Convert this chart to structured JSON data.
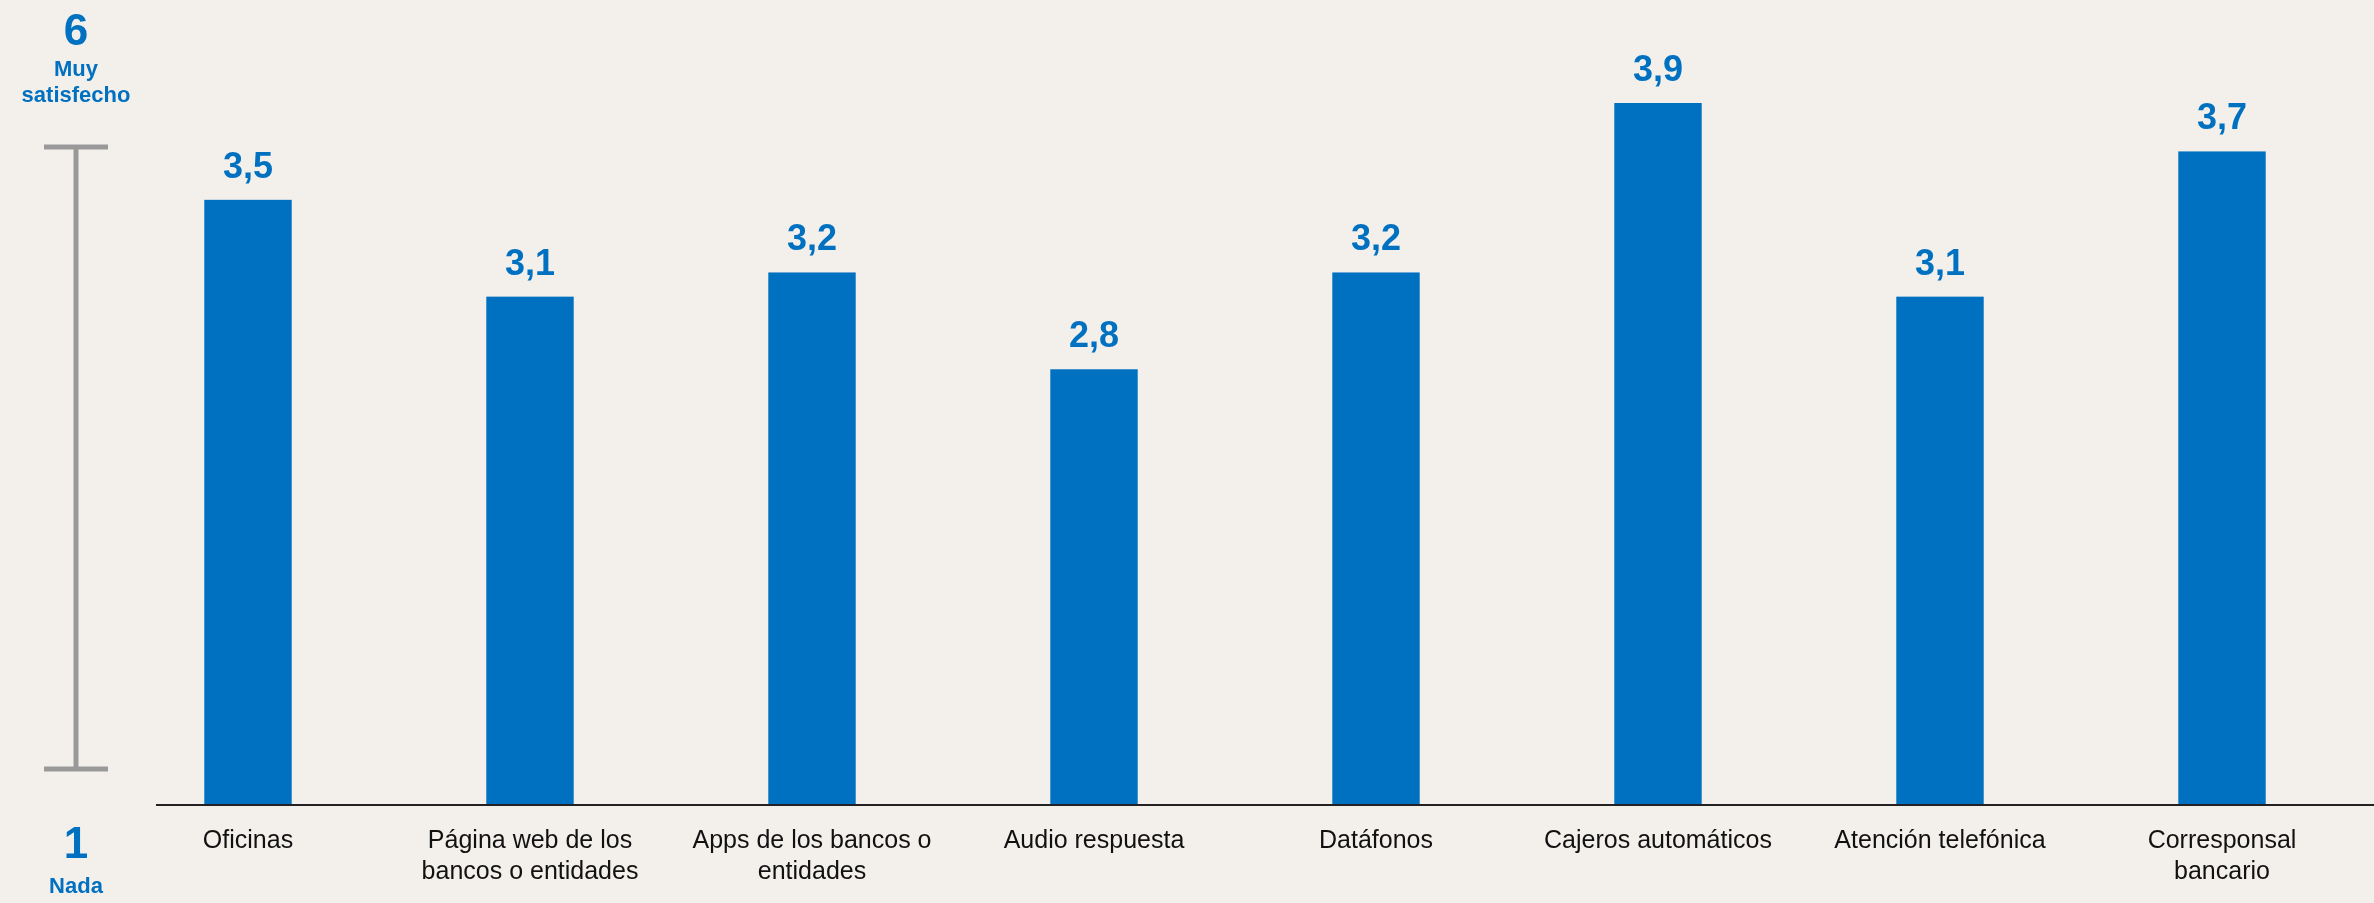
{
  "chart_data": {
    "type": "bar",
    "categories": [
      "Oficinas",
      "Página web de los bancos o entidades",
      "Apps de los bancos o entidades",
      "Audio respuesta",
      "Datáfonos",
      "Cajeros automáticos",
      "Atención telefónica",
      "Corresponsal bancario"
    ],
    "values": [
      3.5,
      3.1,
      3.2,
      2.8,
      3.2,
      3.9,
      3.1,
      3.7
    ],
    "value_labels": [
      "3,5",
      "3,1",
      "3,2",
      "2,8",
      "3,2",
      "3,9",
      "3,1",
      "3,7"
    ],
    "color": "#0070c0",
    "ylim": [
      1,
      3.9
    ],
    "tick_labels": "x",
    "annotations": [
      "6",
      "Muy satisfecho",
      "1",
      "Nada"
    ]
  }
}
